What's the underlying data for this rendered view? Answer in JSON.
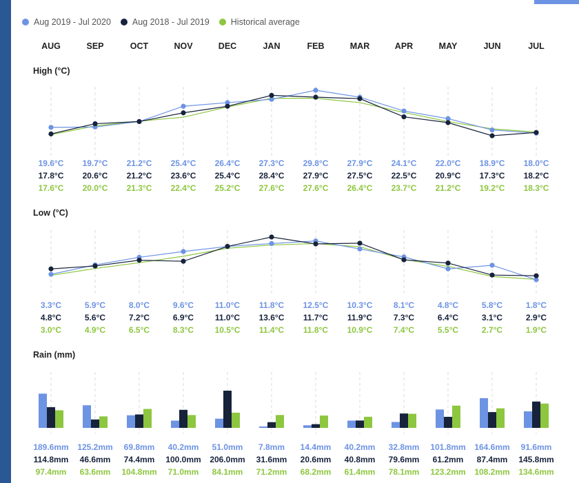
{
  "colors": {
    "a": "#6d93e3",
    "b": "#17223b",
    "c": "#8dc63f"
  },
  "legend": [
    {
      "label": "Aug 2019 - Jul 2020",
      "color": "#6d93e3"
    },
    {
      "label": "Aug 2018 - Jul 2019",
      "color": "#17223b"
    },
    {
      "label": "Historical average",
      "color": "#8dc63f"
    }
  ],
  "months": [
    "AUG",
    "SEP",
    "OCT",
    "NOV",
    "DEC",
    "JAN",
    "FEB",
    "MAR",
    "APR",
    "MAY",
    "JUN",
    "JUL"
  ],
  "chart_data": [
    {
      "type": "line",
      "title": "High (°C)",
      "categories": [
        "AUG",
        "SEP",
        "OCT",
        "NOV",
        "DEC",
        "JAN",
        "FEB",
        "MAR",
        "APR",
        "MAY",
        "JUN",
        "JUL"
      ],
      "series": [
        {
          "name": "Aug 2019 - Jul 2020",
          "color": "#6d93e3",
          "values": [
            19.6,
            19.7,
            21.2,
            25.4,
            26.4,
            27.3,
            29.8,
            27.9,
            24.1,
            22.0,
            18.9,
            18.0
          ],
          "labels": [
            "19.6°C",
            "19.7°C",
            "21.2°C",
            "25.4°C",
            "26.4°C",
            "27.3°C",
            "29.8°C",
            "27.9°C",
            "24.1°C",
            "22.0°C",
            "18.9°C",
            "18.0°C"
          ]
        },
        {
          "name": "Aug 2018 - Jul 2019",
          "color": "#17223b",
          "values": [
            17.8,
            20.6,
            21.2,
            23.6,
            25.4,
            28.4,
            27.9,
            27.5,
            22.5,
            20.9,
            17.3,
            18.2
          ],
          "labels": [
            "17.8°C",
            "20.6°C",
            "21.2°C",
            "23.6°C",
            "25.4°C",
            "28.4°C",
            "27.9°C",
            "27.5°C",
            "22.5°C",
            "20.9°C",
            "17.3°C",
            "18.2°C"
          ]
        },
        {
          "name": "Historical average",
          "color": "#8dc63f",
          "values": [
            17.6,
            20.0,
            21.3,
            22.4,
            25.2,
            27.6,
            27.6,
            26.4,
            23.7,
            21.2,
            19.2,
            18.3
          ],
          "labels": [
            "17.6°C",
            "20.0°C",
            "21.3°C",
            "22.4°C",
            "25.2°C",
            "27.6°C",
            "27.6°C",
            "26.4°C",
            "23.7°C",
            "21.2°C",
            "19.2°C",
            "18.3°C"
          ]
        }
      ]
    },
    {
      "type": "line",
      "title": "Low (°C)",
      "categories": [
        "AUG",
        "SEP",
        "OCT",
        "NOV",
        "DEC",
        "JAN",
        "FEB",
        "MAR",
        "APR",
        "MAY",
        "JUN",
        "JUL"
      ],
      "series": [
        {
          "name": "Aug 2019 - Jul 2020",
          "color": "#6d93e3",
          "values": [
            3.3,
            5.9,
            8.0,
            9.6,
            11.0,
            11.8,
            12.5,
            10.3,
            8.1,
            4.8,
            5.8,
            1.8
          ],
          "labels": [
            "3.3°C",
            "5.9°C",
            "8.0°C",
            "9.6°C",
            "11.0°C",
            "11.8°C",
            "12.5°C",
            "10.3°C",
            "8.1°C",
            "4.8°C",
            "5.8°C",
            "1.8°C"
          ]
        },
        {
          "name": "Aug 2018 - Jul 2019",
          "color": "#17223b",
          "values": [
            4.8,
            5.6,
            7.2,
            6.9,
            11.0,
            13.6,
            11.7,
            11.9,
            7.3,
            6.4,
            3.1,
            2.9
          ],
          "labels": [
            "4.8°C",
            "5.6°C",
            "7.2°C",
            "6.9°C",
            "11.0°C",
            "13.6°C",
            "11.7°C",
            "11.9°C",
            "7.3°C",
            "6.4°C",
            "3.1°C",
            "2.9°C"
          ]
        },
        {
          "name": "Historical average",
          "color": "#8dc63f",
          "values": [
            3.0,
            4.9,
            6.5,
            8.3,
            10.5,
            11.4,
            11.8,
            10.9,
            7.4,
            5.5,
            2.7,
            1.9
          ],
          "labels": [
            "3.0°C",
            "4.9°C",
            "6.5°C",
            "8.3°C",
            "10.5°C",
            "11.4°C",
            "11.8°C",
            "10.9°C",
            "7.4°C",
            "5.5°C",
            "2.7°C",
            "1.9°C"
          ]
        }
      ]
    },
    {
      "type": "bar",
      "title": "Rain (mm)",
      "categories": [
        "AUG",
        "SEP",
        "OCT",
        "NOV",
        "DEC",
        "JAN",
        "FEB",
        "MAR",
        "APR",
        "MAY",
        "JUN",
        "JUL"
      ],
      "series": [
        {
          "name": "Aug 2019 - Jul 2020",
          "color": "#6d93e3",
          "values": [
            189.6,
            125.2,
            69.8,
            40.2,
            51.0,
            7.8,
            14.4,
            40.2,
            32.8,
            101.8,
            164.6,
            91.6
          ],
          "labels": [
            "189.6mm",
            "125.2mm",
            "69.8mm",
            "40.2mm",
            "51.0mm",
            "7.8mm",
            "14.4mm",
            "40.2mm",
            "32.8mm",
            "101.8mm",
            "164.6mm",
            "91.6mm"
          ]
        },
        {
          "name": "Aug 2018 - Jul 2019",
          "color": "#17223b",
          "values": [
            114.8,
            46.6,
            74.4,
            100.0,
            206.0,
            31.6,
            20.6,
            40.8,
            79.6,
            61.2,
            87.4,
            145.8
          ],
          "labels": [
            "114.8mm",
            "46.6mm",
            "74.4mm",
            "100.0mm",
            "206.0mm",
            "31.6mm",
            "20.6mm",
            "40.8mm",
            "79.6mm",
            "61.2mm",
            "87.4mm",
            "145.8mm"
          ]
        },
        {
          "name": "Historical average",
          "color": "#8dc63f",
          "values": [
            97.4,
            63.6,
            104.8,
            71.0,
            84.1,
            71.2,
            68.2,
            61.4,
            78.1,
            123.2,
            108.2,
            134.6
          ],
          "labels": [
            "97.4mm",
            "63.6mm",
            "104.8mm",
            "71.0mm",
            "84.1mm",
            "71.2mm",
            "68.2mm",
            "61.4mm",
            "78.1mm",
            "123.2mm",
            "108.2mm",
            "134.6mm"
          ]
        }
      ]
    }
  ]
}
